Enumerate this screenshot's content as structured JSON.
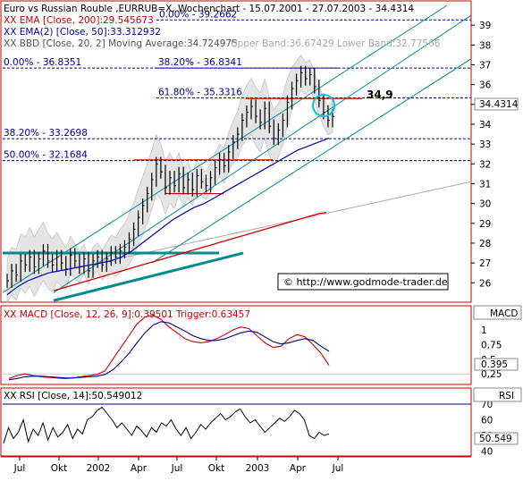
{
  "chart_data": [
    {
      "type": "line",
      "panel": "price",
      "title": "Euro vs Russian Rouble ,EURRUB=X, Wochenchart - 15.07.2001 - 27.07.2003 - 34.4314",
      "indicator_labels": [
        {
          "text": "XX EMA [Close, 200]:29.545673",
          "color": "#d00000"
        },
        {
          "text": "XX EMA(2) [Close, 50]:33.312932",
          "color": "#0000b0"
        },
        {
          "text": "XX BBD [Close, 20, 2] Moving Average:34.724975",
          "color": "#555555"
        },
        {
          "text": "Upper Band:36.67429 Lower Band:32.77566",
          "color": "#aaaaaa"
        }
      ],
      "y_ticks": [
        "39",
        "38",
        "37",
        "36",
        "35",
        "34",
        "33",
        "32",
        "31",
        "30",
        "29",
        "28",
        "27",
        "26"
      ],
      "ylim": [
        25.2,
        40.0
      ],
      "last_value_label": "34.4314",
      "annotation_value": "34,9",
      "copyright": "© http://www.godmode-trader.de",
      "fib_levels": [
        {
          "label": "0.00% - 39.2662",
          "value": 39.2662
        },
        {
          "label": "0.00% - 36.8351",
          "value": 36.8351
        },
        {
          "label": "38.20% - 36.8341",
          "value": 36.8341
        },
        {
          "label": "61.80% - 35.3316",
          "value": 35.3316
        },
        {
          "label": "38.20% - 33.2698",
          "value": 33.2698
        },
        {
          "label": "50.00% - 32.1684",
          "value": 32.1684
        }
      ],
      "series": [
        {
          "name": "Close",
          "color": "#000000",
          "values": [
            26.1,
            26.6,
            26.4,
            27.1,
            26.9,
            27.3,
            26.8,
            27.2,
            27.6,
            27.1,
            26.9,
            27.3,
            27.0,
            26.7,
            27.4,
            27.1,
            26.8,
            27.2,
            26.6,
            27.1,
            27.3,
            26.9,
            27.2,
            27.5,
            27.3,
            27.6,
            27.8,
            28.2,
            28.7,
            29.3,
            29.9,
            30.5,
            31.2,
            32.0,
            31.6,
            30.8,
            31.3,
            30.9,
            31.5,
            30.8,
            31.2,
            30.7,
            31.4,
            31.1,
            30.9,
            31.3,
            31.8,
            32.2,
            31.9,
            32.6,
            33.1,
            33.5,
            34.2,
            34.6,
            34.9,
            34.4,
            34.1,
            34.8,
            33.9,
            33.3,
            33.7,
            34.2,
            35.1,
            35.8,
            36.2,
            36.6,
            36.3,
            36.5,
            35.9,
            35.2,
            34.6,
            34.2,
            34.4
          ]
        },
        {
          "name": "EMA 200",
          "color": "#d00000",
          "values": [
            25.6,
            25.7,
            25.8,
            25.9,
            26.0,
            26.1,
            26.2,
            26.3,
            26.4,
            26.5,
            26.6,
            26.7,
            26.8,
            26.9,
            27.0,
            27.1,
            27.2,
            27.3,
            27.4,
            27.5,
            27.6,
            27.7,
            27.8,
            27.9,
            28.0,
            28.1,
            28.2,
            28.3,
            28.4,
            28.5,
            28.6,
            28.7,
            28.8,
            28.9,
            29.0,
            29.1,
            29.2,
            29.3,
            29.4,
            29.5,
            29.55
          ]
        },
        {
          "name": "EMA 50",
          "color": "#0000b0",
          "values": [
            25.4,
            25.8,
            26.1,
            26.3,
            26.5,
            26.6,
            26.7,
            26.8,
            26.9,
            27.0,
            27.1,
            27.3,
            27.6,
            28.0,
            28.4,
            28.8,
            29.2,
            29.5,
            29.8,
            30.0,
            30.3,
            30.6,
            30.9,
            31.2,
            31.5,
            31.8,
            32.1,
            32.4,
            32.7,
            32.9,
            33.1,
            33.3
          ]
        }
      ]
    },
    {
      "type": "line",
      "panel": "macd",
      "label": "XX MACD [Close, 12, 26, 9]:0.39501 Trigger:0.63457",
      "name_box": "MACD",
      "y_ticks": [
        "1",
        "0,75",
        "0,5",
        "0,25"
      ],
      "ylim": [
        0.1,
        1.35
      ],
      "last_value_label": "0.395",
      "series": [
        {
          "name": "MACD",
          "color": "#d00000",
          "values": [
            0.17,
            0.22,
            0.25,
            0.22,
            0.2,
            0.19,
            0.18,
            0.17,
            0.18,
            0.2,
            0.22,
            0.24,
            0.3,
            0.5,
            0.7,
            0.9,
            1.1,
            1.22,
            1.25,
            1.18,
            1.05,
            0.95,
            0.85,
            0.8,
            0.78,
            0.8,
            0.85,
            0.92,
            1.0,
            1.05,
            1.02,
            0.9,
            0.78,
            0.7,
            0.72,
            0.85,
            0.92,
            0.88,
            0.75,
            0.6,
            0.395
          ]
        },
        {
          "name": "Trigger",
          "color": "#000080",
          "values": [
            0.15,
            0.17,
            0.2,
            0.21,
            0.21,
            0.2,
            0.19,
            0.18,
            0.18,
            0.19,
            0.2,
            0.21,
            0.24,
            0.32,
            0.45,
            0.6,
            0.78,
            0.95,
            1.08,
            1.14,
            1.12,
            1.05,
            0.98,
            0.9,
            0.85,
            0.82,
            0.82,
            0.85,
            0.9,
            0.95,
            0.98,
            0.96,
            0.88,
            0.8,
            0.76,
            0.78,
            0.82,
            0.85,
            0.82,
            0.72,
            0.63457
          ]
        }
      ]
    },
    {
      "type": "line",
      "panel": "rsi",
      "label": "XX RSI [Close, 14]:50.549012",
      "name_box": "RSI",
      "y_ticks": [
        "70",
        "60",
        "50",
        "40"
      ],
      "ylim": [
        38,
        78
      ],
      "last_value_label": "50.549",
      "series": [
        {
          "name": "RSI",
          "color": "#000000",
          "values": [
            45,
            55,
            48,
            52,
            60,
            46,
            54,
            50,
            58,
            47,
            55,
            49,
            52,
            57,
            48,
            54,
            51,
            60,
            62,
            66,
            68,
            64,
            60,
            55,
            58,
            54,
            50,
            56,
            53,
            49,
            55,
            52,
            58,
            56,
            60,
            54,
            50,
            55,
            48,
            52,
            57,
            54,
            58,
            61,
            64,
            60,
            62,
            65,
            67,
            62,
            58,
            60,
            56,
            52,
            55,
            58,
            61,
            59,
            62,
            66,
            64,
            60,
            50,
            48,
            52,
            50,
            51
          ]
        }
      ]
    }
  ],
  "x_axis": {
    "ticks": [
      "Jul",
      "Okt",
      "2002",
      "Apr",
      "Jul",
      "Okt",
      "2003",
      "Apr",
      "Jul"
    ]
  },
  "colors": {
    "frame": "#d00000",
    "fib": "#0000a0",
    "channel": "#008c8c",
    "support": "#008c8c",
    "bands_fill": "#e4e4e4",
    "cursor": "#00c0e8",
    "resistance": "#c00000"
  }
}
